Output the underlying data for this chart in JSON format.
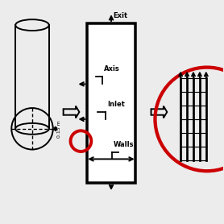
{
  "bg_color": "#ececec",
  "arrow_color": "#000000",
  "red_circle_color": "#cc0000",
  "lw": 1.4,
  "labels": {
    "exit": "Exit",
    "axis": "Axis",
    "inlet": "Inlet",
    "walls": "Walls",
    "dim": "0.15 m"
  },
  "figsize": [
    2.78,
    2.78
  ],
  "dpi": 100
}
